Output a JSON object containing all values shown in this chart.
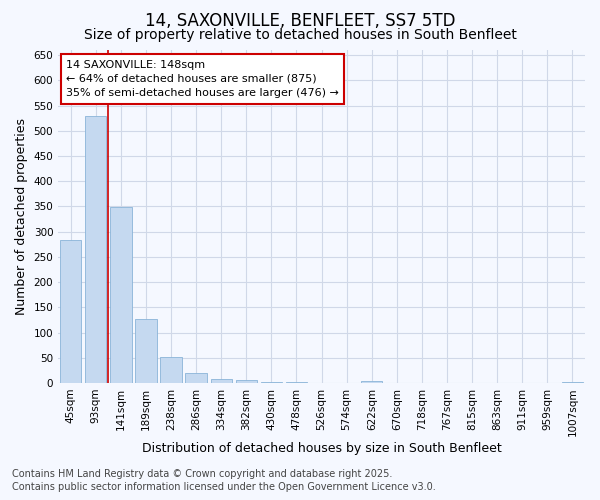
{
  "title_line1": "14, SAXONVILLE, BENFLEET, SS7 5TD",
  "title_line2": "Size of property relative to detached houses in South Benfleet",
  "xlabel": "Distribution of detached houses by size in South Benfleet",
  "ylabel": "Number of detached properties",
  "categories": [
    "45sqm",
    "93sqm",
    "141sqm",
    "189sqm",
    "238sqm",
    "286sqm",
    "334sqm",
    "382sqm",
    "430sqm",
    "478sqm",
    "526sqm",
    "574sqm",
    "622sqm",
    "670sqm",
    "718sqm",
    "767sqm",
    "815sqm",
    "863sqm",
    "911sqm",
    "959sqm",
    "1007sqm"
  ],
  "values": [
    283,
    530,
    348,
    126,
    52,
    19,
    9,
    7,
    3,
    2,
    0,
    0,
    4,
    0,
    0,
    0,
    0,
    0,
    0,
    0,
    3
  ],
  "bar_color": "#c5d9f0",
  "bar_edge_color": "#8ab4d8",
  "vline_index": 2,
  "vline_color": "#cc0000",
  "ylim_max": 660,
  "yticks": [
    0,
    50,
    100,
    150,
    200,
    250,
    300,
    350,
    400,
    450,
    500,
    550,
    600,
    650
  ],
  "annotation_text_line1": "14 SAXONVILLE: 148sqm",
  "annotation_text_line2": "← 64% of detached houses are smaller (875)",
  "annotation_text_line3": "35% of semi-detached houses are larger (476) →",
  "annotation_box_facecolor": "white",
  "annotation_box_edgecolor": "#cc0000",
  "footer_line1": "Contains HM Land Registry data © Crown copyright and database right 2025.",
  "footer_line2": "Contains public sector information licensed under the Open Government Licence v3.0.",
  "background_color": "#f5f8ff",
  "grid_color": "#d0d8e8",
  "title_fontsize": 12,
  "subtitle_fontsize": 10,
  "axis_label_fontsize": 9,
  "tick_fontsize": 7.5,
  "annotation_fontsize": 8,
  "footer_fontsize": 7
}
